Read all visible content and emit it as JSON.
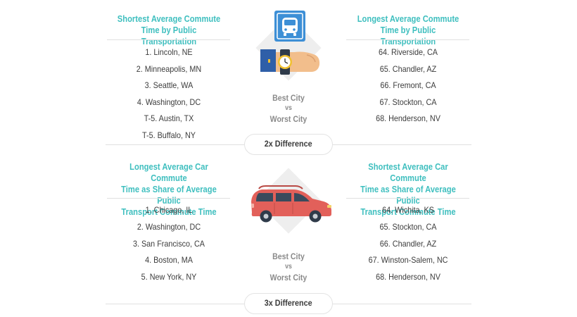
{
  "sections": [
    {
      "left_heading": [
        "Shortest Average Commute",
        "Time by Public Transportation"
      ],
      "right_heading": [
        "Longest Average Commute",
        "Time by Public Transportation"
      ],
      "left_list": [
        "1. Lincoln, NE",
        "2. Minneapolis, MN",
        "3. Seattle, WA",
        "4. Washington, DC",
        "T-5. Austin, TX",
        "T-5. Buffalo, NY"
      ],
      "right_list": [
        "64. Riverside, CA",
        "65. Chandler, AZ",
        "66. Fremont, CA",
        "67. Stockton, CA",
        "68. Henderson, NV"
      ],
      "comparison": [
        "Best City",
        "vs",
        "Worst City"
      ],
      "difference": "2x Difference",
      "icon": "bus-stop-and-watch-icon"
    },
    {
      "left_heading": [
        "Longest Average Car Commute",
        "Time as Share of Average Public",
        "Transport Commute Time"
      ],
      "right_heading": [
        "Shortest Average Car Commute",
        "Time as Share of Average Public",
        "Transport Commute Time"
      ],
      "left_list": [
        "1. Chicago, IL",
        "2. Washington, DC",
        "3. San Francisco, CA",
        "4. Boston, MA",
        "5. New York, NY"
      ],
      "right_list": [
        "64. Wichita, KS",
        "65. Stockton, CA",
        "66. Chandler, AZ",
        "67. Winston-Salem, NC",
        "68. Henderson, NV"
      ],
      "comparison": [
        "Best City",
        "vs",
        "Worst City"
      ],
      "difference": "3x Difference",
      "icon": "car-icon"
    }
  ],
  "colors": {
    "heading": "#3fbfbf",
    "text": "#3c3c3c",
    "muted": "#8a8a8a",
    "bus_sign": "#3d8fd6",
    "car": "#e2605a",
    "diamond": "#eeeeee"
  }
}
